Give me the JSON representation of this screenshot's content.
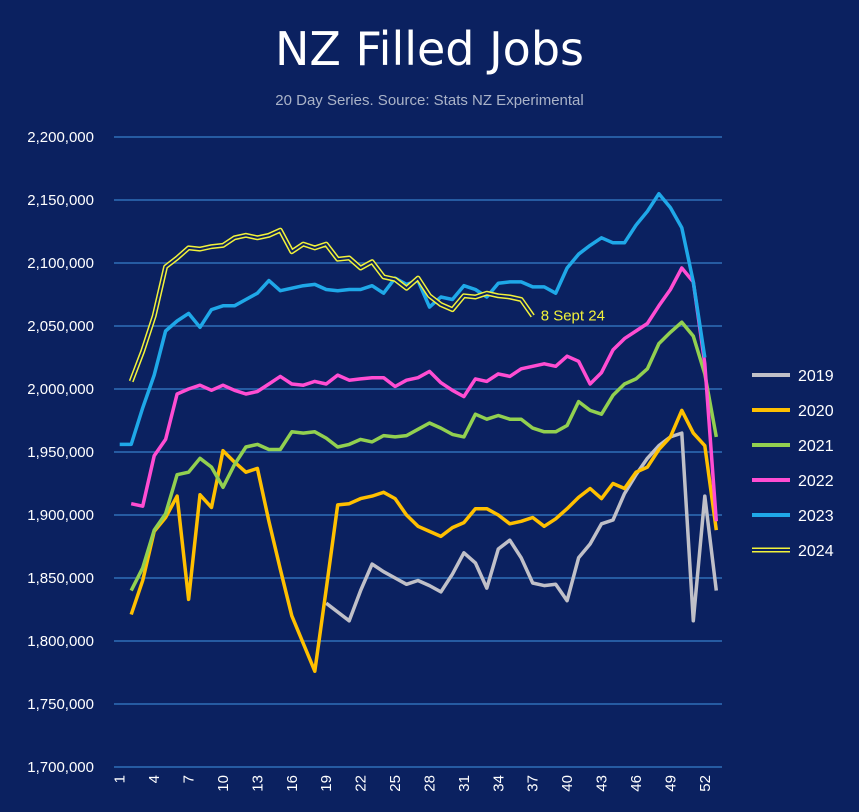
{
  "chart_data": {
    "type": "line",
    "title": "NZ Filled Jobs",
    "subtitle": "20 Day Series. Source: Stats NZ Experimental",
    "xlabel": "",
    "ylabel": "",
    "ylim": [
      1700000,
      2200000
    ],
    "xlim": [
      1,
      53
    ],
    "grid": true,
    "legend_position": "right",
    "y_tick_labels": [
      "1,700,000",
      "1,750,000",
      "1,800,000",
      "1,850,000",
      "1,900,000",
      "1,950,000",
      "2,000,000",
      "2,050,000",
      "2,100,000",
      "2,150,000",
      "2,200,000"
    ],
    "y_ticks": [
      1700000,
      1750000,
      1800000,
      1850000,
      1900000,
      1950000,
      2000000,
      2050000,
      2100000,
      2150000,
      2200000
    ],
    "x_ticks": [
      1,
      4,
      7,
      10,
      13,
      16,
      19,
      22,
      25,
      28,
      31,
      34,
      37,
      40,
      43,
      46,
      49,
      52
    ],
    "annotation": {
      "text": "8 Sept 24",
      "x": 37,
      "y": 2056000
    },
    "series": [
      {
        "name": "2019",
        "color": "#c0c0c8",
        "start": 19,
        "values": [
          1830000,
          1823000,
          1816000,
          1840000,
          1861000,
          1855000,
          1850000,
          1845000,
          1848000,
          1844000,
          1839000,
          1853000,
          1870000,
          1862000,
          1842000,
          1873000,
          1880000,
          1866000,
          1846000,
          1844000,
          1845000,
          1832000,
          1866000,
          1877000,
          1893000,
          1896000,
          1917000,
          1932000,
          1945000,
          1955000,
          1962000,
          1965000,
          1816000,
          1915000,
          1840000
        ]
      },
      {
        "name": "2020",
        "color": "#ffc000",
        "start": 2,
        "values": [
          1821000,
          1848000,
          1887000,
          1898000,
          1915000,
          1833000,
          1916000,
          1906000,
          1951000,
          1942000,
          1934000,
          1937000,
          1895000,
          1857000,
          1820000,
          1798000,
          1776000,
          1841000,
          1908000,
          1909000,
          1913000,
          1915000,
          1918000,
          1913000,
          1900000,
          1891000,
          1887000,
          1883000,
          1890000,
          1894000,
          1905000,
          1905000,
          1900000,
          1893000,
          1895000,
          1898000,
          1891000,
          1897000,
          1905000,
          1914000,
          1921000,
          1913000,
          1925000,
          1921000,
          1934000,
          1938000,
          1952000,
          1962000,
          1983000,
          1965000,
          1955000,
          1888000
        ]
      },
      {
        "name": "2021",
        "color": "#92d050",
        "start": 2,
        "values": [
          1840000,
          1858000,
          1888000,
          1901000,
          1932000,
          1934000,
          1945000,
          1938000,
          1922000,
          1940000,
          1954000,
          1956000,
          1952000,
          1952000,
          1966000,
          1965000,
          1966000,
          1961000,
          1954000,
          1956000,
          1960000,
          1958000,
          1963000,
          1962000,
          1963000,
          1968000,
          1973000,
          1969000,
          1964000,
          1962000,
          1980000,
          1976000,
          1979000,
          1976000,
          1976000,
          1969000,
          1966000,
          1966000,
          1971000,
          1990000,
          1983000,
          1980000,
          1995000,
          2004000,
          2008000,
          2016000,
          2036000,
          2045000,
          2053000,
          2042000,
          2012000,
          1962000
        ]
      },
      {
        "name": "2022",
        "color": "#ff4dd2",
        "start": 2,
        "values": [
          1909000,
          1907000,
          1947000,
          1960000,
          1996000,
          2000000,
          2003000,
          1999000,
          2003000,
          1999000,
          1996000,
          1998000,
          2004000,
          2010000,
          2004000,
          2003000,
          2006000,
          2004000,
          2011000,
          2007000,
          2008000,
          2009000,
          2009000,
          2002000,
          2007000,
          2009000,
          2014000,
          2005000,
          1999000,
          1994000,
          2008000,
          2006000,
          2012000,
          2010000,
          2016000,
          2018000,
          2020000,
          2018000,
          2026000,
          2022000,
          2004000,
          2013000,
          2031000,
          2040000,
          2046000,
          2052000,
          2066000,
          2079000,
          2096000,
          2085000,
          2020000,
          1895000
        ]
      },
      {
        "name": "2023",
        "color": "#1fa8e8",
        "start": 1,
        "values": [
          1956000,
          1956000,
          1985000,
          2011000,
          2046000,
          2054000,
          2060000,
          2049000,
          2063000,
          2066000,
          2066000,
          2071000,
          2076000,
          2086000,
          2078000,
          2080000,
          2082000,
          2083000,
          2079000,
          2078000,
          2079000,
          2079000,
          2082000,
          2076000,
          2088000,
          2083000,
          2086000,
          2065000,
          2073000,
          2071000,
          2082000,
          2079000,
          2073000,
          2084000,
          2085000,
          2085000,
          2081000,
          2081000,
          2076000,
          2096000,
          2107000,
          2114000,
          2120000,
          2116000,
          2116000,
          2130000,
          2141000,
          2155000,
          2144000,
          2128000,
          2085000,
          2025000
        ]
      },
      {
        "name": "2024",
        "color": "#f2f23a",
        "start": 2,
        "values": [
          2006000,
          2030000,
          2058000,
          2097000,
          2104000,
          2112000,
          2111000,
          2113000,
          2114000,
          2120000,
          2122000,
          2120000,
          2122000,
          2126000,
          2109000,
          2115000,
          2112000,
          2115000,
          2103000,
          2104000,
          2096000,
          2101000,
          2089000,
          2087000,
          2080000,
          2088000,
          2074000,
          2067000,
          2063000,
          2074000,
          2073000,
          2076000,
          2074000,
          2073000,
          2071000,
          2058000
        ]
      }
    ]
  }
}
